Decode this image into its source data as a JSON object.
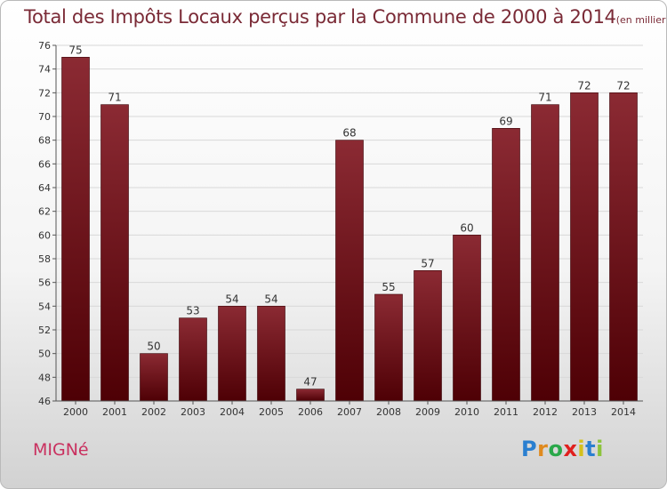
{
  "title": "Total des Impôts Locaux perçus par la Commune de 2000 à 2014",
  "title_unit": "(en milliers d'€)",
  "commune": "MIGNé",
  "logo": {
    "letters": [
      "P",
      "r",
      "o",
      "x",
      "i",
      "t",
      "i"
    ],
    "colors": [
      "#2a7fd0",
      "#e08a1e",
      "#2aa84a",
      "#e0201e",
      "#d4c01c",
      "#2a7fd0",
      "#8cc43c"
    ]
  },
  "colors": {
    "bar_top": "#8b2a33",
    "bar_bottom": "#4e0005",
    "axis": "#555555",
    "grid": "#d8d8d8",
    "title": "#7a2a36",
    "commune": "#c9305f"
  },
  "chart_data": {
    "type": "bar",
    "categories": [
      "2000",
      "2001",
      "2002",
      "2003",
      "2004",
      "2005",
      "2006",
      "2007",
      "2008",
      "2009",
      "2010",
      "2011",
      "2012",
      "2013",
      "2014"
    ],
    "values": [
      75,
      71,
      50,
      53,
      54,
      54,
      47,
      68,
      55,
      57,
      60,
      69,
      71,
      72,
      72
    ],
    "ylim": [
      46,
      76
    ],
    "yticks": [
      46,
      48,
      50,
      52,
      54,
      56,
      58,
      60,
      62,
      64,
      66,
      68,
      70,
      72,
      74,
      76
    ],
    "grid": true
  }
}
